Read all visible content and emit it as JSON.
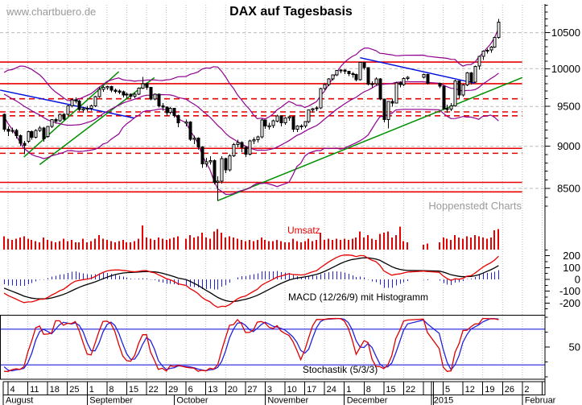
{
  "header": {
    "watermark": "www.chartbuero.de",
    "title": "DAX auf Tagesbasis",
    "credit": "Hoppenstedt Charts"
  },
  "panels": {
    "volume_label": "Umsatz",
    "macd_label": "MACD (12/26/9) mit Histogramm",
    "stoch_label": "Stochastik (5/3/3)"
  },
  "chart_data": {
    "type": "candlestick",
    "title": "DAX auf Tagesbasis",
    "scale": "log",
    "indicators": {
      "bollinger": "20,2",
      "macd": "12/26/9",
      "stochastic": "5/3/3"
    },
    "axis": {
      "price_ticks": [
        10500,
        10000,
        9500,
        9000,
        8500
      ],
      "macd_ticks": [
        200,
        100,
        0,
        -100,
        -200
      ],
      "stoch_ticks": [
        50
      ],
      "week_labels": [
        "4",
        "11",
        "18",
        "25",
        "1",
        "8",
        "15",
        "22",
        "29",
        "6",
        "13",
        "20",
        "27",
        "3",
        "10",
        "17",
        "24",
        "1",
        "8",
        "15",
        "22",
        "",
        "5",
        "12",
        "19",
        "26",
        "2"
      ],
      "months": [
        {
          "label": "August",
          "slot": 0
        },
        {
          "label": "September",
          "slot": 21
        },
        {
          "label": "October",
          "slot": 43
        },
        {
          "label": "November",
          "slot": 66
        },
        {
          "label": "December",
          "slot": 86
        },
        {
          "label": "2015",
          "slot": 108,
          "year_boundary": true
        },
        {
          "label": "Februar",
          "slot": 131
        }
      ]
    },
    "levels": {
      "solid": [
        10090,
        9798,
        8975,
        8570,
        8460
      ],
      "dashed": [
        9600,
        9430,
        9380,
        8915
      ]
    },
    "trendlines": [
      {
        "color": "blue",
        "from": [
          -1,
          9713
        ],
        "to": [
          33,
          9350
        ]
      },
      {
        "color": "blue",
        "from": [
          90,
          10150
        ],
        "to": [
          119,
          9805
        ]
      },
      {
        "color": "green",
        "from": [
          5,
          8870
        ],
        "to": [
          29,
          9960
        ]
      },
      {
        "color": "green",
        "from": [
          9,
          8780
        ],
        "to": [
          38,
          9880
        ]
      },
      {
        "color": "green",
        "from": [
          54,
          8360
        ],
        "to": [
          131,
          9880
        ]
      }
    ],
    "holiday_slots": [
      45,
      103,
      104,
      105,
      108,
      109
    ],
    "pre_closes": [
      9902,
      9950,
      10029,
      10009,
      9906,
      9773,
      9808,
      9659,
      9666,
      9783,
      9719,
      9754,
      9752,
      9720,
      9787,
      9794,
      9753,
      9644,
      9612,
      9598,
      9653,
      9600,
      9510,
      9407
    ],
    "candles": [
      [
        9400,
        9410,
        9180,
        9210
      ],
      [
        9210,
        9245,
        9125,
        9186
      ],
      [
        9186,
        9230,
        9160,
        9198
      ],
      [
        9198,
        9215,
        9095,
        9130
      ],
      [
        9130,
        9145,
        9000,
        9038
      ],
      [
        9038,
        9065,
        8903,
        9009
      ],
      [
        9060,
        9190,
        9040,
        9180
      ],
      [
        9180,
        9195,
        9080,
        9110
      ],
      [
        9110,
        9210,
        9095,
        9198
      ],
      [
        9198,
        9250,
        9175,
        9225
      ],
      [
        9225,
        9240,
        9055,
        9093
      ],
      [
        9120,
        9250,
        9105,
        9245
      ],
      [
        9245,
        9340,
        9225,
        9334
      ],
      [
        9334,
        9355,
        9280,
        9315
      ],
      [
        9315,
        9410,
        9300,
        9401
      ],
      [
        9401,
        9415,
        9320,
        9339
      ],
      [
        9400,
        9520,
        9390,
        9510
      ],
      [
        9510,
        9602,
        9488,
        9588
      ],
      [
        9588,
        9615,
        9538,
        9570
      ],
      [
        9570,
        9585,
        9440,
        9463
      ],
      [
        9463,
        9495,
        9420,
        9470
      ],
      [
        9470,
        9505,
        9440,
        9479
      ],
      [
        9479,
        9525,
        9448,
        9507
      ],
      [
        9507,
        9640,
        9490,
        9626
      ],
      [
        9626,
        9755,
        9610,
        9724
      ],
      [
        9724,
        9765,
        9690,
        9747
      ],
      [
        9747,
        9773,
        9718,
        9758
      ],
      [
        9758,
        9770,
        9688,
        9710
      ],
      [
        9710,
        9732,
        9668,
        9700
      ],
      [
        9700,
        9722,
        9658,
        9691
      ],
      [
        9691,
        9705,
        9618,
        9651
      ],
      [
        9651,
        9682,
        9608,
        9659
      ],
      [
        9659,
        9672,
        9598,
        9632
      ],
      [
        9632,
        9682,
        9608,
        9661
      ],
      [
        9661,
        9752,
        9648,
        9740
      ],
      [
        9740,
        9891,
        9728,
        9799
      ],
      [
        9799,
        9812,
        9718,
        9749
      ],
      [
        9749,
        9752,
        9578,
        9595
      ],
      [
        9595,
        9672,
        9578,
        9661
      ],
      [
        9661,
        9672,
        9488,
        9510
      ],
      [
        9510,
        9542,
        9448,
        9490
      ],
      [
        9490,
        9502,
        9378,
        9422
      ],
      [
        9422,
        9492,
        9398,
        9474
      ],
      [
        9474,
        9482,
        9358,
        9382
      ],
      [
        9382,
        9392,
        9238,
        9290
      ],
      [
        9290,
        9332,
        9248,
        9300
      ],
      [
        9300,
        9312,
        9068,
        9086
      ],
      [
        9086,
        9132,
        9028,
        9101
      ],
      [
        9101,
        9112,
        8958,
        8993
      ],
      [
        8993,
        9002,
        8738,
        8789
      ],
      [
        8789,
        8862,
        8748,
        8812
      ],
      [
        8812,
        8882,
        8778,
        8825
      ],
      [
        8825,
        8842,
        8548,
        8571
      ],
      [
        8571,
        8642,
        8355,
        8583
      ],
      [
        8583,
        8882,
        8558,
        8850
      ],
      [
        8850,
        8862,
        8678,
        8718
      ],
      [
        8718,
        8902,
        8698,
        8887
      ],
      [
        8887,
        9042,
        8868,
        9022
      ],
      [
        9022,
        9082,
        8988,
        9047
      ],
      [
        9047,
        9062,
        8928,
        8988
      ],
      [
        8988,
        9002,
        8868,
        8903
      ],
      [
        8903,
        9082,
        8888,
        9068
      ],
      [
        9068,
        9112,
        9028,
        9083
      ],
      [
        9083,
        9132,
        9048,
        9115
      ],
      [
        9115,
        9342,
        9098,
        9327
      ],
      [
        9327,
        9332,
        9218,
        9251
      ],
      [
        9251,
        9292,
        9208,
        9255
      ],
      [
        9255,
        9332,
        9228,
        9315
      ],
      [
        9315,
        9392,
        9298,
        9377
      ],
      [
        9377,
        9382,
        9248,
        9291
      ],
      [
        9291,
        9362,
        9268,
        9352
      ],
      [
        9352,
        9382,
        9318,
        9368
      ],
      [
        9368,
        9372,
        9178,
        9210
      ],
      [
        9210,
        9262,
        9178,
        9249
      ],
      [
        9249,
        9272,
        9208,
        9253
      ],
      [
        9253,
        9312,
        9228,
        9306
      ],
      [
        9306,
        9462,
        9288,
        9456
      ],
      [
        9456,
        9482,
        9418,
        9472
      ],
      [
        9472,
        9502,
        9438,
        9484
      ],
      [
        9484,
        9742,
        9468,
        9733
      ],
      [
        9733,
        9802,
        9718,
        9786
      ],
      [
        9786,
        9872,
        9768,
        9861
      ],
      [
        9861,
        9922,
        9838,
        9915
      ],
      [
        9915,
        9982,
        9898,
        9974
      ],
      [
        9974,
        9992,
        9938,
        9981
      ],
      [
        9981,
        9992,
        9928,
        9964
      ],
      [
        9964,
        9972,
        9898,
        9934
      ],
      [
        9934,
        9952,
        9878,
        9920
      ],
      [
        9920,
        9932,
        9828,
        9851
      ],
      [
        9851,
        10093,
        9838,
        10087
      ],
      [
        10087,
        10092,
        9988,
        10014
      ],
      [
        10014,
        10022,
        9778,
        9792
      ],
      [
        9792,
        9832,
        9748,
        9799
      ],
      [
        9799,
        9882,
        9778,
        9862
      ],
      [
        9862,
        9872,
        9578,
        9595
      ],
      [
        9595,
        9602,
        9298,
        9334
      ],
      [
        9334,
        9572,
        9219,
        9563
      ],
      [
        9563,
        9602,
        9498,
        9545
      ],
      [
        9545,
        9822,
        9538,
        9811
      ],
      [
        9811,
        9832,
        9748,
        9787
      ],
      [
        9787,
        9882,
        9768,
        9866
      ],
      [
        9866,
        9902,
        9838,
        9884
      ],
      [
        9884,
        9932,
        9868,
        9922
      ],
      [
        9922,
        9932,
        9788,
        9805
      ],
      [
        9805,
        9812,
        9738,
        9765
      ],
      [
        9765,
        9772,
        9458,
        9473
      ],
      [
        9473,
        9522,
        9418,
        9469
      ],
      [
        9469,
        9542,
        9438,
        9506
      ],
      [
        9506,
        9852,
        9498,
        9837
      ],
      [
        9837,
        9842,
        9608,
        9648
      ],
      [
        9648,
        9792,
        9628,
        9781
      ],
      [
        9781,
        9952,
        9768,
        9941
      ],
      [
        9941,
        9952,
        9788,
        9817
      ],
      [
        9817,
        10042,
        9808,
        10033
      ],
      [
        10033,
        10172,
        9988,
        10167
      ],
      [
        10167,
        10252,
        10118,
        10242
      ],
      [
        10242,
        10272,
        10208,
        10255
      ],
      [
        10255,
        10312,
        10218,
        10299
      ],
      [
        10299,
        10442,
        10288,
        10435
      ],
      [
        10435,
        10700,
        10418,
        10650
      ]
    ],
    "volume_rel": [
      0.55,
      0.45,
      0.4,
      0.45,
      0.5,
      0.55,
      0.45,
      0.4,
      0.35,
      0.3,
      0.5,
      0.4,
      0.35,
      0.3,
      0.35,
      0.45,
      0.35,
      0.4,
      0.3,
      0.3,
      0.45,
      0.3,
      0.35,
      0.45,
      0.6,
      0.45,
      0.4,
      0.35,
      0.3,
      0.35,
      0.4,
      0.3,
      0.3,
      0.35,
      0.45,
      1.0,
      0.5,
      0.45,
      0.4,
      0.5,
      0.45,
      0.4,
      0.45,
      0.5,
      0.55,
      0.45,
      0.6,
      0.5,
      0.55,
      0.7,
      0.5,
      0.45,
      0.75,
      0.85,
      0.7,
      0.5,
      0.55,
      0.5,
      0.45,
      0.4,
      0.35,
      0.4,
      0.35,
      0.4,
      0.5,
      0.4,
      0.35,
      0.35,
      0.4,
      0.35,
      0.3,
      0.3,
      0.45,
      0.35,
      0.3,
      0.35,
      0.45,
      0.35,
      0.4,
      0.7,
      0.4,
      0.45,
      0.4,
      0.45,
      0.4,
      0.45,
      0.4,
      0.45,
      0.5,
      0.75,
      0.5,
      0.6,
      0.45,
      0.4,
      0.65,
      0.7,
      0.75,
      0.5,
      0.6,
      0.95,
      0.35,
      0.3,
      0.2,
      0.25,
      0.3,
      0.5,
      0.45,
      0.4,
      0.6,
      0.5,
      0.45,
      0.55,
      0.5,
      0.6,
      0.55,
      0.5,
      0.45,
      0.5,
      0.8,
      0.85
    ]
  }
}
